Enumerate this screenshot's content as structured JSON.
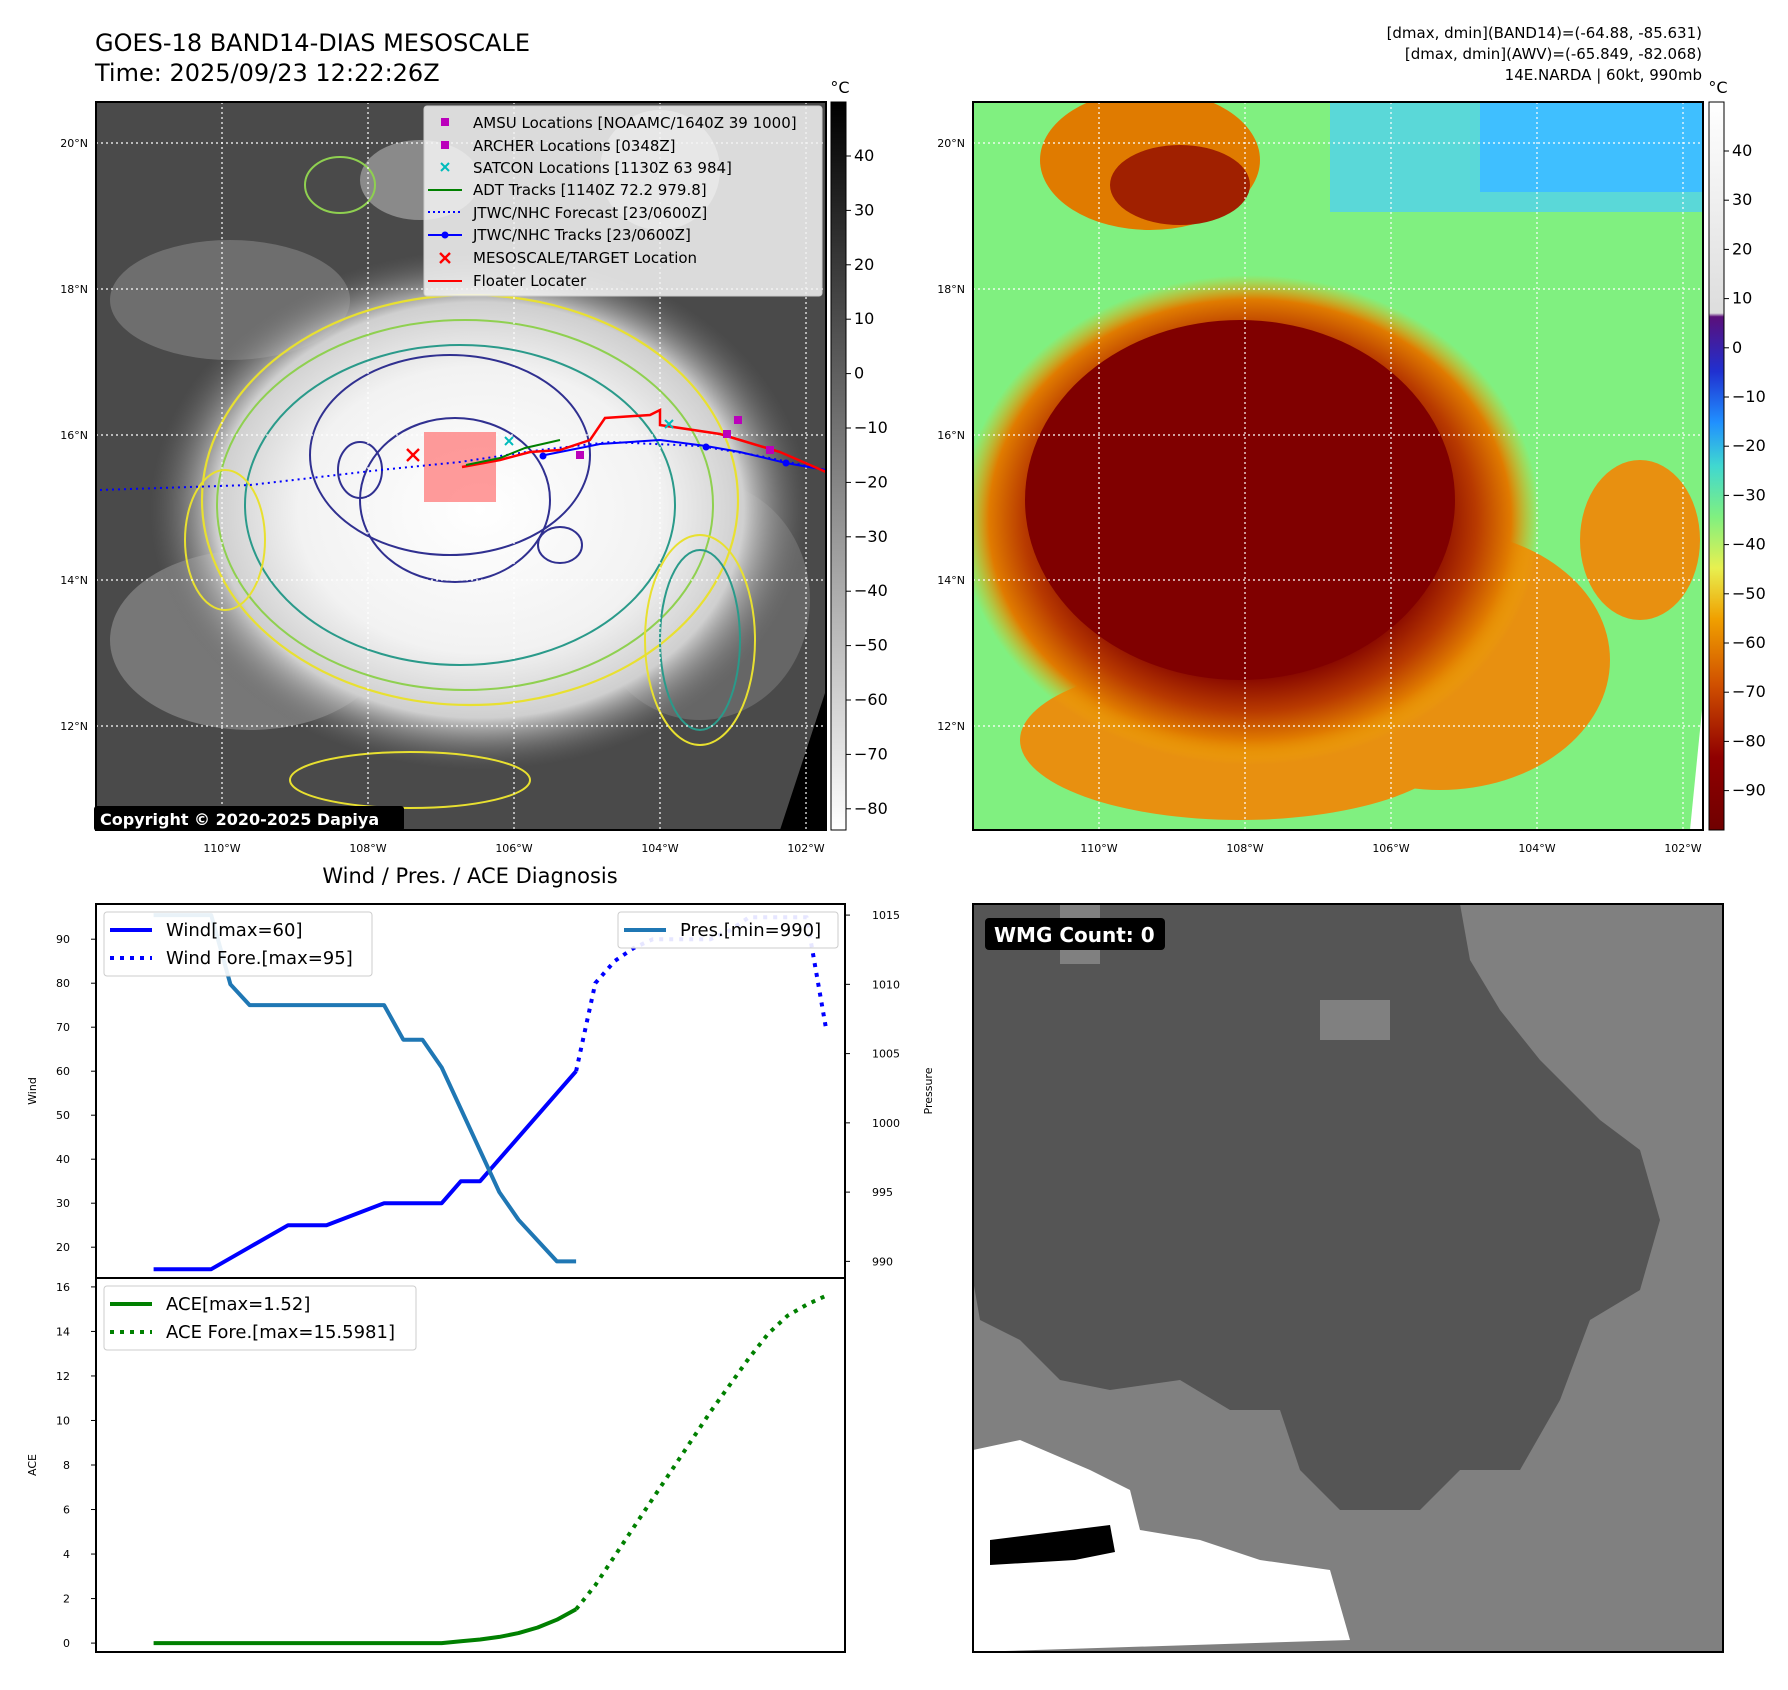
{
  "header": {
    "title_line1": "GOES-18 BAND14-DIAS MESOSCALE",
    "title_line2": "Time: 2025/09/23 12:22:26Z",
    "info_line1": "[dmax, dmin](BAND14)=(-64.88, -85.631)",
    "info_line2": "[dmax, dmin](AWV)=(-65.849, -82.068)",
    "info_line3": "14E.NARDA | 60kt, 990mb"
  },
  "map_axes": {
    "lat_ticks": [
      "20°N",
      "18°N",
      "16°N",
      "14°N",
      "12°N"
    ],
    "lon_ticks": [
      "110°W",
      "108°W",
      "106°W",
      "104°W",
      "102°W"
    ]
  },
  "colorbar_left": {
    "unit": "°C",
    "ticks": [
      "40",
      "30",
      "20",
      "10",
      "0",
      "−10",
      "−20",
      "−30",
      "−40",
      "−50",
      "−60",
      "−70",
      "−80"
    ]
  },
  "colorbar_right": {
    "unit": "°C",
    "ticks": [
      "40",
      "30",
      "20",
      "10",
      "0",
      "−10",
      "−20",
      "−30",
      "−40",
      "−50",
      "−60",
      "−70",
      "−80",
      "−90"
    ]
  },
  "map_legend": [
    {
      "label": "AMSU Locations [NOAAMC/1640Z 39 1000]",
      "color": "#bb00bb",
      "marker": "square"
    },
    {
      "label": "ARCHER Locations [0348Z]",
      "color": "#bb00bb",
      "marker": "square"
    },
    {
      "label": "SATCON Locations [1130Z 63 984]",
      "color": "#00bbbb",
      "marker": "x"
    },
    {
      "label": "ADT Tracks [1140Z 72.2 979.8]",
      "color": "#008000",
      "marker": "line"
    },
    {
      "label": "JTWC/NHC Forecast [23/0600Z]",
      "color": "#0000ff",
      "marker": "dotted"
    },
    {
      "label": "JTWC/NHC Tracks [23/0600Z]",
      "color": "#0000ff",
      "marker": "line-dot"
    },
    {
      "label": "MESOSCALE/TARGET Location",
      "color": "#ff0000",
      "marker": "x"
    },
    {
      "label": "Floater Locater",
      "color": "#ff0000",
      "marker": "line"
    }
  ],
  "copyright": "Copyright © 2020-2025 Dapiya",
  "wmg": {
    "label": "WMG Count: 0"
  },
  "chart_data": [
    {
      "type": "line",
      "title": "Wind / Pres. / ACE Diagnosis",
      "ylabel": "Wind",
      "ylabel_right": "Pressure",
      "ylim": [
        13,
        98
      ],
      "ylim_right": [
        988.8,
        1015.8
      ],
      "yticks": [
        20,
        30,
        40,
        50,
        60,
        70,
        80,
        90
      ],
      "yticks_right": [
        990,
        995,
        1000,
        1005,
        1010,
        1015
      ],
      "xlim": [
        -3,
        36
      ],
      "series": [
        {
          "name": "Wind[max=60]",
          "color": "#0000ff",
          "style": "solid",
          "x": [
            0,
            3,
            5,
            7,
            8,
            9,
            12,
            13,
            14,
            15,
            16,
            17,
            18,
            19,
            20,
            21,
            22
          ],
          "values": [
            15,
            15,
            20,
            25,
            25,
            25,
            30,
            30,
            30,
            30,
            35,
            35,
            40,
            45,
            50,
            55,
            60
          ]
        },
        {
          "name": "Wind Fore.[max=95]",
          "color": "#0000ff",
          "style": "dotted",
          "x": [
            22,
            23,
            24,
            25,
            26,
            27,
            28,
            29,
            30,
            31,
            32,
            33,
            34,
            35
          ],
          "values": [
            60,
            80,
            85,
            88,
            90,
            90,
            90,
            90,
            92,
            95,
            95,
            95,
            95,
            70
          ]
        },
        {
          "name": "Pres.[min=990]",
          "color": "#1f77b4",
          "style": "solid",
          "axis": "right",
          "x": [
            0,
            3,
            4,
            5,
            6,
            12,
            13,
            14,
            15,
            16,
            17,
            18,
            19,
            20,
            21,
            22
          ],
          "values": [
            1015,
            1015,
            1010,
            1008.5,
            1008.5,
            1008.5,
            1006,
            1006,
            1004,
            1001,
            998,
            995,
            993,
            991.5,
            990,
            990
          ]
        }
      ]
    },
    {
      "type": "line",
      "ylabel": "ACE",
      "ylim": [
        -0.4,
        16.4
      ],
      "yticks": [
        0,
        2,
        4,
        6,
        8,
        10,
        12,
        14,
        16
      ],
      "xlim": [
        -3,
        36
      ],
      "series": [
        {
          "name": "ACE[max=1.52]",
          "color": "#008000",
          "style": "solid",
          "x": [
            0,
            6,
            12,
            13,
            14,
            15,
            16,
            17,
            18,
            19,
            20,
            21,
            22
          ],
          "values": [
            0,
            0,
            0,
            0,
            0,
            0,
            0.08,
            0.16,
            0.28,
            0.45,
            0.7,
            1.05,
            1.52
          ]
        },
        {
          "name": "ACE Fore.[max=15.5981]",
          "color": "#008000",
          "style": "dotted",
          "x": [
            22,
            23,
            24,
            25,
            26,
            27,
            28,
            29,
            30,
            31,
            32,
            33,
            34,
            35
          ],
          "values": [
            1.52,
            2.6,
            3.9,
            5.2,
            6.5,
            7.8,
            9.1,
            10.4,
            11.6,
            12.8,
            13.9,
            14.7,
            15.2,
            15.6
          ]
        }
      ]
    }
  ]
}
